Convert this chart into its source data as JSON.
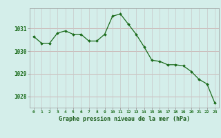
{
  "x": [
    0,
    1,
    2,
    3,
    4,
    5,
    6,
    7,
    8,
    9,
    10,
    11,
    12,
    13,
    14,
    15,
    16,
    17,
    18,
    19,
    20,
    21,
    22,
    23
  ],
  "y": [
    1030.65,
    1030.35,
    1030.35,
    1030.8,
    1030.9,
    1030.75,
    1030.75,
    1030.45,
    1030.45,
    1030.75,
    1031.55,
    1031.65,
    1031.2,
    1030.75,
    1030.2,
    1029.6,
    1029.55,
    1029.4,
    1029.4,
    1029.35,
    1029.1,
    1028.75,
    1028.55,
    1027.7
  ],
  "line_color": "#1a6b1a",
  "marker_color": "#1a6b1a",
  "bg_color": "#d4eeea",
  "grid_color_h": "#c8a0a0",
  "grid_color_v": "#c8c8c8",
  "xlabel": "Graphe pression niveau de la mer (hPa)",
  "xlabel_color": "#1a5c1a",
  "tick_color": "#1a6b1a",
  "ylim": [
    1027.5,
    1031.9
  ],
  "yticks": [
    1028,
    1029,
    1030,
    1031
  ],
  "xticks": [
    0,
    1,
    2,
    3,
    4,
    5,
    6,
    7,
    8,
    9,
    10,
    11,
    12,
    13,
    14,
    15,
    16,
    17,
    18,
    19,
    20,
    21,
    22,
    23
  ],
  "xlim": [
    -0.5,
    23.5
  ]
}
